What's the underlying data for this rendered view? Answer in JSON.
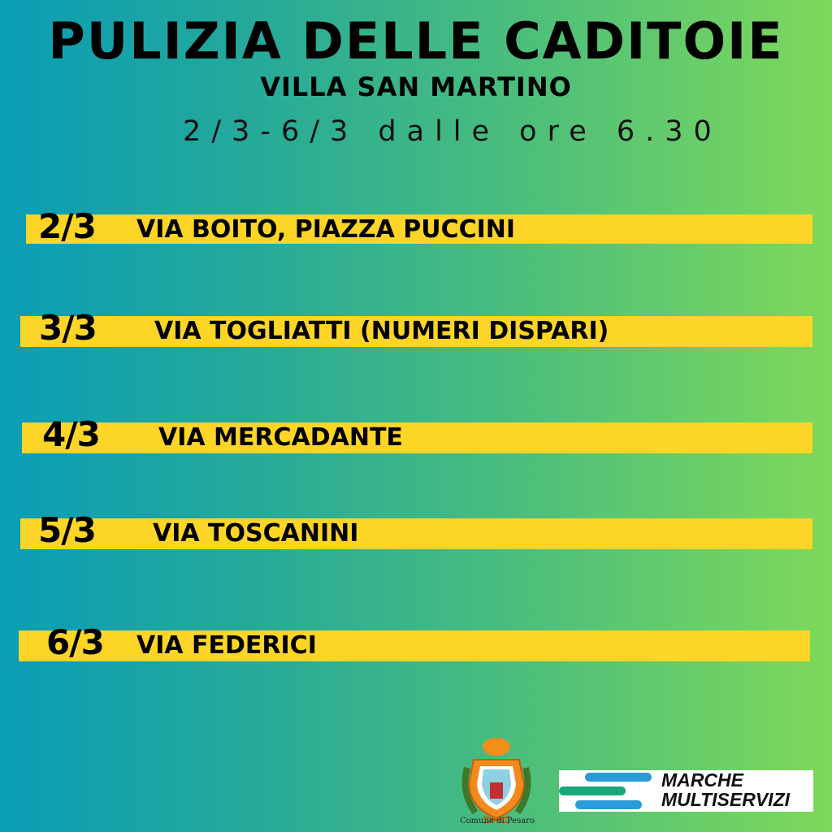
{
  "header": {
    "title": "PULIZIA DELLE CADITOIE",
    "subtitle": "VILLA SAN MARTINO",
    "date_range": "2/3-6/3 dalle ore 6.30"
  },
  "schedule": [
    {
      "date": "2/3",
      "street": "VIA BOITO, PIAZZA PUCCINI"
    },
    {
      "date": "3/3",
      "street": "VIA TOGLIATTI (NUMERI DISPARI)"
    },
    {
      "date": "4/3",
      "street": "VIA MERCADANTE"
    },
    {
      "date": "5/3",
      "street": "VIA TOSCANINI"
    },
    {
      "date": "6/3",
      "street": "VIA FEDERICI"
    }
  ],
  "footer": {
    "crest_label": "Comune di Pesaro",
    "company_line1": "MARCHE",
    "company_line2": "MULTISERVIZI"
  },
  "colors": {
    "bar": "#fdd527",
    "gradient_left": "#0a9db6",
    "gradient_right": "#7fd85a",
    "logo_blue": "#2a9ad8",
    "logo_green": "#18a67a"
  }
}
